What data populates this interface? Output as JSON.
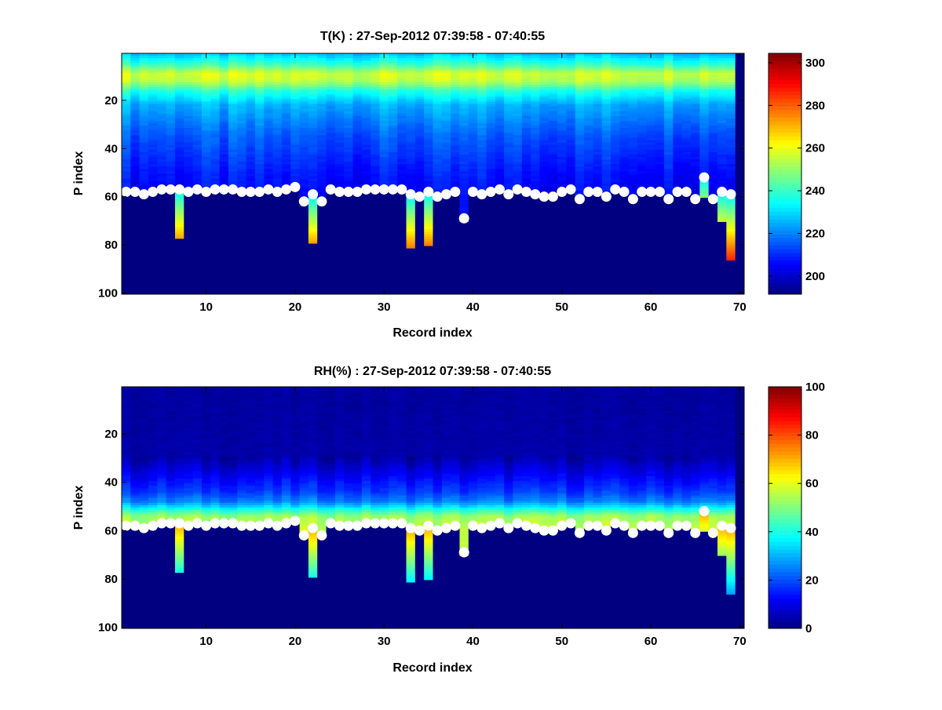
{
  "chart_data": [
    {
      "type": "heatmap",
      "title": "T(K) : 27-Sep-2012 07:39:58 - 07:40:55",
      "xlabel": "Record index",
      "ylabel": "P index",
      "xlim": [
        0.5,
        70.5
      ],
      "ylim": [
        0.5,
        100.5
      ],
      "y_reversed": true,
      "xticks": [
        10,
        20,
        30,
        40,
        50,
        60,
        70
      ],
      "yticks": [
        20,
        40,
        60,
        80,
        100
      ],
      "colormap": "jet",
      "clim": [
        191.5,
        304.4
      ],
      "colorbar_ticks": [
        200,
        220,
        240,
        260,
        280,
        300
      ],
      "profile_knots": [
        [
          1,
          228
        ],
        [
          5,
          240
        ],
        [
          9,
          257
        ],
        [
          12,
          255
        ],
        [
          16,
          238
        ],
        [
          22,
          225
        ],
        [
          35,
          215
        ],
        [
          50,
          208
        ],
        [
          60,
          205
        ]
      ],
      "extension_start": 232,
      "extension_slope": 2.0,
      "fill_value": 191.5
    },
    {
      "type": "heatmap",
      "title": "RH(%) : 27-Sep-2012 07:39:58 - 07:40:55",
      "xlabel": "Record index",
      "ylabel": "P index",
      "xlim": [
        0.5,
        70.5
      ],
      "ylim": [
        0.5,
        100.5
      ],
      "y_reversed": true,
      "xticks": [
        10,
        20,
        30,
        40,
        50,
        60,
        70
      ],
      "yticks": [
        20,
        40,
        60,
        80,
        100
      ],
      "colormap": "jet",
      "clim": [
        0,
        100
      ],
      "colorbar_ticks": [
        0,
        20,
        40,
        60,
        80,
        100
      ],
      "profile_knots": [
        [
          1,
          3
        ],
        [
          30,
          4
        ],
        [
          38,
          12
        ],
        [
          44,
          18
        ],
        [
          48,
          25
        ],
        [
          51,
          38
        ],
        [
          54,
          52
        ],
        [
          60,
          58
        ]
      ],
      "extension_start": 72,
      "extension_slope": -1.6,
      "fill_value": 0
    }
  ],
  "records": {
    "surface_p_index": [
      58,
      58,
      59,
      58,
      57,
      57,
      57,
      58,
      57,
      58,
      57,
      57,
      57,
      58,
      58,
      58,
      57,
      58,
      57,
      56,
      62,
      59,
      62,
      57,
      58,
      58,
      58,
      57,
      57,
      57,
      57,
      57,
      59,
      60,
      58,
      60,
      59,
      58,
      69,
      58,
      59,
      58,
      57,
      59,
      57,
      58,
      59,
      60,
      60,
      58,
      57,
      61,
      58,
      58,
      60,
      57,
      58,
      61,
      58,
      58,
      58,
      61,
      58,
      58,
      61,
      52,
      61,
      58,
      59,
      null
    ],
    "profile_bottom_p_index": [
      58,
      58,
      59,
      58,
      57,
      57,
      77,
      58,
      57,
      58,
      57,
      57,
      57,
      58,
      58,
      58,
      57,
      58,
      57,
      56,
      62,
      79,
      62,
      57,
      58,
      58,
      58,
      57,
      57,
      57,
      57,
      57,
      81,
      60,
      80,
      60,
      59,
      58,
      70,
      58,
      59,
      58,
      57,
      59,
      57,
      58,
      59,
      60,
      60,
      58,
      57,
      61,
      58,
      58,
      60,
      57,
      58,
      61,
      58,
      58,
      58,
      61,
      58,
      58,
      61,
      60,
      61,
      70,
      86,
      null
    ],
    "marker_color": "#ffffff"
  }
}
